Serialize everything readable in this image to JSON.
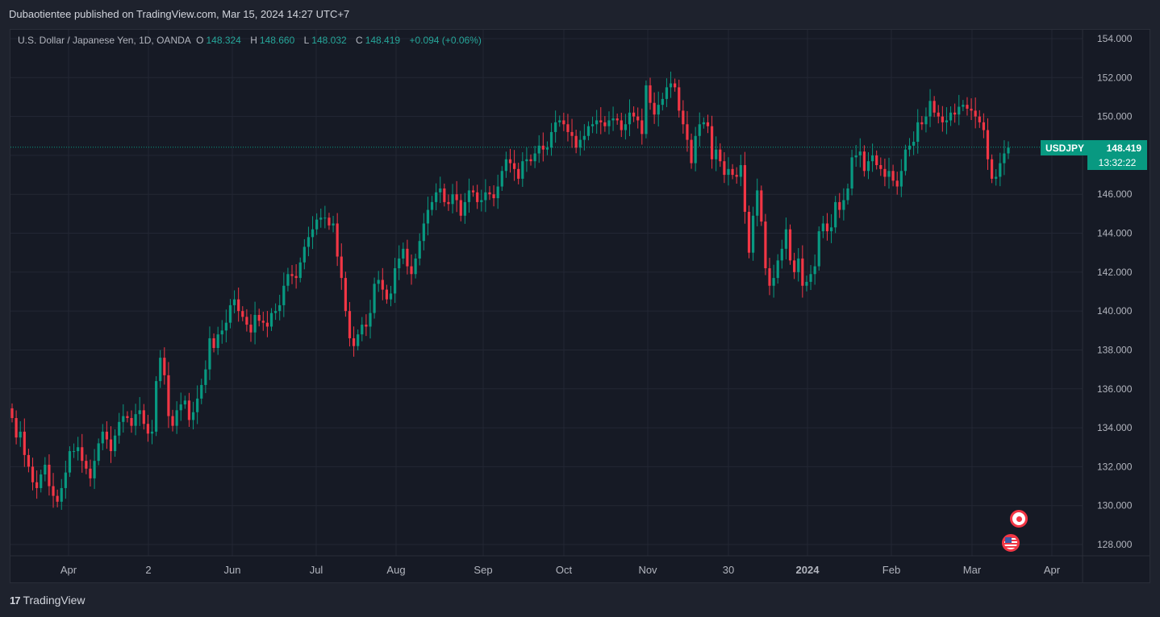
{
  "header": {
    "publish_line": "Dubaotientee published on TradingView.com, Mar 15, 2024 14:27 UTC+7"
  },
  "legend": {
    "symbol_desc": "U.S. Dollar / Japanese Yen, 1D, OANDA",
    "open_label": "O",
    "open_value": "148.324",
    "high_label": "H",
    "high_value": "148.660",
    "low_label": "L",
    "low_value": "148.032",
    "close_label": "C",
    "close_value": "148.419",
    "change": "+0.094 (+0.06%)"
  },
  "price_badge": {
    "symbol": "USDJPY",
    "price": "148.419",
    "countdown": "13:32:22"
  },
  "footer": {
    "brand": "TradingView",
    "logo_mark": "17"
  },
  "colors": {
    "up": "#089981",
    "down": "#f23645",
    "background": "#161a25",
    "grid": "#232734",
    "axis_text": "#b2b5be"
  },
  "icons": [
    "japan-flag-icon",
    "us-flag-icon"
  ],
  "chart_data": {
    "type": "candlestick",
    "symbol": "USDJPY",
    "title": "U.S. Dollar / Japanese Yen, 1D, OANDA",
    "ylim": [
      127.5,
      154.6
    ],
    "y_ticks": [
      "154.000",
      "152.000",
      "150.000",
      "148.000",
      "146.000",
      "144.000",
      "142.000",
      "140.000",
      "138.000",
      "136.000",
      "134.000",
      "132.000",
      "130.000",
      "128.000"
    ],
    "x_ticks": [
      "Apr",
      "2",
      "Jun",
      "Jul",
      "Aug",
      "Sep",
      "Oct",
      "Nov",
      "30",
      "2024",
      "Feb",
      "Mar",
      "Apr"
    ],
    "last_price": 148.419,
    "closes": [
      134.5,
      133.5,
      133.8,
      132.6,
      132.0,
      131.2,
      130.9,
      131.6,
      132.1,
      131.0,
      130.5,
      130.2,
      130.9,
      131.7,
      132.8,
      132.8,
      133.0,
      132.3,
      131.9,
      131.4,
      132.3,
      133.2,
      133.8,
      133.4,
      132.8,
      133.6,
      134.3,
      134.6,
      134.5,
      134.1,
      134.7,
      134.9,
      134.2,
      133.7,
      133.8,
      136.4,
      137.6,
      136.7,
      134.6,
      134.1,
      134.9,
      135.2,
      135.4,
      134.4,
      134.8,
      135.5,
      136.2,
      137.0,
      138.6,
      138.1,
      138.8,
      139.0,
      139.4,
      140.3,
      140.6,
      140.0,
      139.7,
      139.3,
      138.9,
      139.8,
      139.5,
      139.4,
      139.2,
      139.9,
      140.0,
      140.3,
      141.3,
      141.9,
      141.8,
      141.7,
      142.5,
      143.3,
      143.8,
      144.2,
      144.7,
      144.8,
      144.8,
      144.4,
      144.5,
      142.8,
      141.7,
      140.0,
      138.6,
      138.2,
      138.8,
      139.3,
      139.2,
      139.9,
      141.4,
      141.6,
      141.1,
      140.6,
      140.9,
      142.2,
      142.7,
      143.2,
      142.3,
      141.9,
      142.7,
      143.6,
      144.5,
      145.2,
      145.6,
      146.1,
      146.3,
      145.6,
      145.5,
      146.0,
      145.7,
      144.9,
      145.6,
      146.2,
      146.1,
      145.6,
      145.7,
      146.1,
      146.0,
      145.8,
      146.4,
      147.2,
      147.8,
      147.6,
      147.3,
      146.8,
      147.7,
      147.8,
      147.7,
      148.1,
      148.5,
      148.3,
      148.4,
      149.2,
      149.7,
      149.8,
      149.6,
      149.2,
      149.0,
      148.4,
      148.8,
      149.0,
      149.5,
      149.6,
      149.8,
      149.7,
      149.5,
      149.8,
      149.9,
      149.8,
      149.3,
      149.6,
      150.2,
      150.0,
      149.8,
      149.1,
      151.6,
      150.7,
      150.1,
      150.6,
      150.9,
      151.5,
      151.7,
      151.5,
      150.3,
      149.6,
      148.8,
      147.6,
      149.0,
      149.6,
      149.7,
      149.5,
      147.8,
      148.3,
      147.7,
      147.0,
      147.3,
      147.0,
      146.9,
      147.5,
      145.1,
      143.0,
      144.9,
      146.2,
      144.6,
      142.2,
      141.3,
      141.7,
      142.6,
      143.2,
      144.2,
      142.6,
      142.0,
      142.7,
      141.3,
      141.5,
      141.9,
      142.3,
      144.1,
      144.5,
      144.1,
      144.3,
      145.6,
      145.2,
      145.7,
      146.3,
      147.9,
      148.0,
      148.2,
      147.2,
      147.7,
      148.0,
      147.5,
      147.3,
      146.9,
      147.2,
      146.7,
      146.4,
      147.2,
      148.3,
      148.5,
      148.7,
      149.7,
      149.6,
      150.0,
      150.8,
      150.2,
      150.0,
      149.7,
      149.8,
      150.2,
      150.1,
      150.5,
      150.6,
      150.4,
      150.3,
      150.0,
      149.7,
      149.3,
      147.8,
      146.8,
      146.9,
      147.6,
      148.1,
      148.4
    ]
  }
}
